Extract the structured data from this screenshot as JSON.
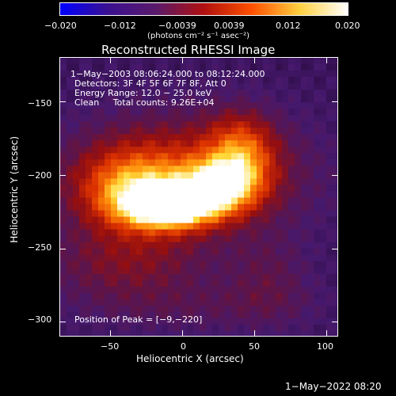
{
  "colorbar": {
    "ticks": [
      "−0.020",
      "−0.012",
      "−0.0039",
      "0.0039",
      "0.012",
      "0.020"
    ],
    "units": "(photons cm⁻² s⁻¹ asec⁻²)",
    "colors": [
      "#0000ff",
      "#3a1090",
      "#5a1a6a",
      "#b01010",
      "#ff5000",
      "#ffd040",
      "#ffffff"
    ]
  },
  "image": {
    "title": "Reconstructed RHESSI Image",
    "time_range": "1−May−2003 08:06:24.000 to 08:12:24.000",
    "detectors": "Detectors: 3F 4F 5F 6F 7F 8F, Att 0",
    "energy": "Energy Range: 12.0 − 25.0 keV",
    "clean": "Clean     Total counts: 9.26E+04",
    "peak": "Position of Peak = [−9,−220]"
  },
  "axes": {
    "xlabel": "Heliocentric X (arcsec)",
    "ylabel": "Heliocentric Y (arcsec)",
    "xticks": [
      "−50",
      "0",
      "50",
      "100"
    ],
    "xvalues": [
      -50,
      0,
      50,
      100
    ],
    "yticks": [
      "−150",
      "−200",
      "−250",
      "−300"
    ],
    "yvalues": [
      -150,
      -200,
      -250,
      -300
    ],
    "xlim": [
      -85,
      108
    ],
    "ylim": [
      -310,
      -120
    ]
  },
  "footer": {
    "timestamp": "1−May−2022 08:20"
  }
}
